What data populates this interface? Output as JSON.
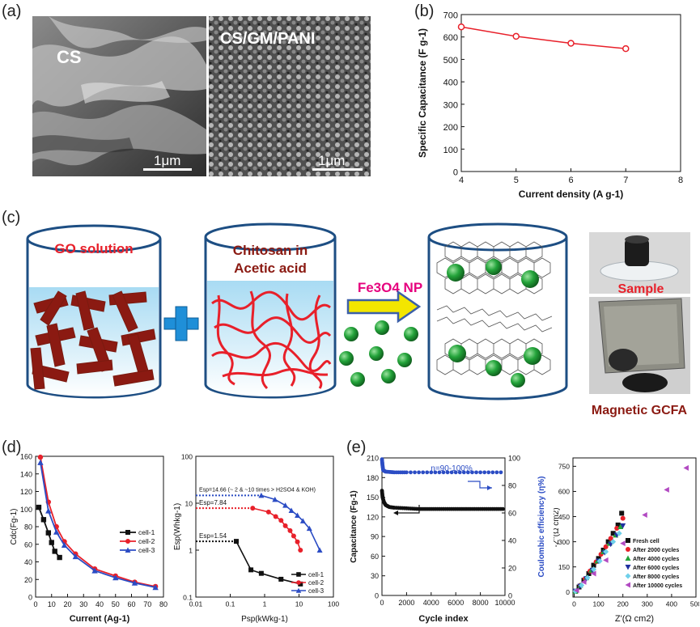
{
  "panels": {
    "a": "(a)",
    "b": "(b)",
    "c": "(c)",
    "d": "(d)",
    "e": "(e)"
  },
  "sem": {
    "left_label": "CS",
    "right_label": "CS/GM/PANI",
    "scale_left": "1μm",
    "scale_right": "1μm"
  },
  "diagram": {
    "beaker1": "GO solution",
    "beaker2_line1": "Chitosan in",
    "beaker2_line2": "Acetic acid",
    "np_label": "Fe3O4 NP",
    "photo_top": "Sample",
    "photo_bottom": "Magnetic GCFA"
  },
  "colors": {
    "red_text": "#e8202a",
    "brown": "#8b1a12",
    "plus": "#1f8fd8",
    "arrow": "#f3e600",
    "magenta": "#e6007e",
    "np_green": "#23a33a",
    "beaker_blue": "#cfe8f6"
  },
  "chart_data": [
    {
      "id": "b",
      "type": "line",
      "title": "",
      "xlabel": "Current density (A g-1)",
      "ylabel": "Specific Capacitance (F g-1)",
      "xlim": [
        4,
        8
      ],
      "ylim": [
        0,
        700
      ],
      "xticks": [
        "4",
        "5",
        "6",
        "7",
        "8"
      ],
      "yticks": [
        "0",
        "100",
        "200",
        "300",
        "400",
        "500",
        "600",
        "700"
      ],
      "series": [
        {
          "name": "capacitance",
          "color": "#e8202a",
          "x": [
            4,
            5,
            6,
            7
          ],
          "y": [
            645,
            603,
            572,
            548
          ]
        }
      ]
    },
    {
      "id": "d1",
      "type": "line",
      "xlabel": "Current (Ag-1)",
      "ylabel": "Cdc(Fg-1)",
      "xlim": [
        0,
        80
      ],
      "ylim": [
        0,
        160
      ],
      "xticks": [
        "0",
        "10",
        "20",
        "30",
        "40",
        "50",
        "60",
        "70",
        "80"
      ],
      "yticks": [
        "0",
        "20",
        "40",
        "60",
        "80",
        "100",
        "120",
        "140",
        "160"
      ],
      "legend": [
        "cell-1",
        "cell-2",
        "cell-3"
      ],
      "series": [
        {
          "name": "cell-1",
          "color": "#111111",
          "marker": "square",
          "x": [
            2,
            5,
            8,
            10,
            12,
            15
          ],
          "y": [
            102,
            88,
            73,
            62,
            52,
            45
          ]
        },
        {
          "name": "cell-2",
          "color": "#e8202a",
          "marker": "circle",
          "x": [
            3,
            8,
            13,
            18,
            25,
            37,
            50,
            62,
            75
          ],
          "y": [
            159,
            108,
            80,
            63,
            49,
            32,
            24,
            17,
            12
          ]
        },
        {
          "name": "cell-3",
          "color": "#2b4cc4",
          "marker": "triangle",
          "x": [
            3,
            8,
            13,
            18,
            25,
            37,
            50,
            62,
            75
          ],
          "y": [
            153,
            98,
            74,
            59,
            46,
            30,
            22,
            16,
            11
          ]
        }
      ]
    },
    {
      "id": "d2",
      "type": "line",
      "xlabel": "Psp(kWkg-1)",
      "ylabel": "Esp(Whkg-1)",
      "xscale": "log",
      "yscale": "log",
      "xlim": [
        0.01,
        100
      ],
      "ylim": [
        0.1,
        100
      ],
      "xticks": [
        "0.01",
        "0.1",
        "1",
        "10",
        "100"
      ],
      "yticks": [
        "0.1",
        "1",
        "10",
        "100"
      ],
      "legend": [
        "cell-1",
        "cell-2",
        "cell-3"
      ],
      "annotations": [
        "Esp=14.66 (~ 2 & ~10 times > H2SO4 & KOH)",
        "Esp=7.84",
        "Esp=1.54"
      ],
      "series": [
        {
          "name": "cell-1",
          "color": "#111111",
          "marker": "square",
          "x": [
            0.15,
            0.4,
            0.8,
            3,
            11
          ],
          "y": [
            1.54,
            0.38,
            0.32,
            0.24,
            0.19
          ]
        },
        {
          "name": "cell-2",
          "color": "#e8202a",
          "marker": "circle",
          "x": [
            0.45,
            1.3,
            2.1,
            3,
            4,
            5.5,
            7,
            9,
            11
          ],
          "y": [
            7.84,
            6.5,
            5.2,
            4.3,
            3.3,
            2.6,
            2.0,
            1.5,
            1.0
          ]
        },
        {
          "name": "cell-3",
          "color": "#2b4cc4",
          "marker": "triangle",
          "x": [
            0.8,
            2,
            4,
            6,
            9,
            13,
            20,
            40
          ],
          "y": [
            14.66,
            12,
            9,
            7,
            5.5,
            4.2,
            2.9,
            1.0
          ]
        }
      ]
    },
    {
      "id": "e1",
      "type": "line",
      "xlabel": "Cycle index",
      "ylabel": "Capacitance (Fg-1)",
      "ylabel_right": "Coulombic efficiency (η%)",
      "annotation": "η=90-100%",
      "xlim": [
        0,
        10000
      ],
      "ylim": [
        0,
        210
      ],
      "ylim_right": [
        0,
        100
      ],
      "xticks": [
        "0",
        "2000",
        "4000",
        "6000",
        "8000",
        "10000"
      ],
      "yticks": [
        "0",
        "30",
        "60",
        "90",
        "120",
        "150",
        "180",
        "210"
      ],
      "yticks_right": [
        "0",
        "20",
        "40",
        "60",
        "80",
        "100"
      ],
      "series": [
        {
          "name": "Capacitance",
          "color": "#111111",
          "x": [
            0,
            50,
            150,
            300,
            600,
            1000,
            2000,
            3000,
            4000,
            5000,
            6000,
            7000,
            8000,
            9000,
            10000
          ],
          "y": [
            160,
            150,
            143,
            138,
            135,
            134,
            133,
            132,
            132,
            132,
            132,
            132,
            132,
            132,
            132
          ]
        },
        {
          "name": "Coulombic efficiency",
          "color": "#2b4cc4",
          "x": [
            0,
            40,
            100,
            300,
            1000,
            2000,
            4000,
            6000,
            8000,
            10000
          ],
          "y": [
            99,
            95,
            91,
            90,
            89.5,
            89.5,
            89.5,
            89.5,
            89.5,
            89.5
          ]
        }
      ]
    },
    {
      "id": "e2",
      "type": "scatter",
      "xlabel": "Z'(Ω cm2)",
      "ylabel": "-Z''(Ω cm2)",
      "xlim": [
        -5,
        500
      ],
      "ylim": [
        -30,
        800
      ],
      "xticks": [
        "0",
        "100",
        "200",
        "300",
        "400",
        "500"
      ],
      "yticks": [
        "0",
        "150",
        "300",
        "450",
        "600",
        "750"
      ],
      "legend": [
        "Fresh cell",
        "After 2000 cycles",
        "After 4000 cycles",
        "After 6000 cycles",
        "After 8000 cycles",
        "After 10000 cycles"
      ],
      "series": [
        {
          "name": "Fresh cell",
          "color": "#111111",
          "marker": "square",
          "x": [
            5,
            20,
            40,
            60,
            80,
            100,
            120,
            140,
            160,
            180,
            195
          ],
          "y": [
            5,
            30,
            70,
            110,
            160,
            200,
            250,
            300,
            350,
            400,
            470
          ]
        },
        {
          "name": "After 2000 cycles",
          "color": "#e8202a",
          "marker": "circle",
          "x": [
            5,
            25,
            45,
            65,
            90,
            110,
            130,
            150,
            175,
            200
          ],
          "y": [
            5,
            40,
            80,
            125,
            180,
            225,
            270,
            320,
            380,
            440
          ]
        },
        {
          "name": "After 4000 cycles",
          "color": "#23a33a",
          "marker": "triangle",
          "x": [
            5,
            25,
            50,
            70,
            95,
            120,
            145,
            170,
            190
          ],
          "y": [
            5,
            40,
            85,
            130,
            185,
            240,
            290,
            340,
            390
          ]
        },
        {
          "name": "After 6000 cycles",
          "color": "#1f2fa0",
          "marker": "tri-down",
          "x": [
            5,
            25,
            50,
            75,
            100,
            125,
            150,
            175,
            200
          ],
          "y": [
            5,
            35,
            80,
            130,
            185,
            235,
            285,
            340,
            395
          ]
        },
        {
          "name": "After 8000 cycles",
          "color": "#6fd0ea",
          "marker": "diamond",
          "x": [
            5,
            30,
            55,
            80,
            105,
            130,
            160,
            185
          ],
          "y": [
            5,
            40,
            85,
            135,
            185,
            240,
            300,
            350
          ]
        },
        {
          "name": "After 10000 cycles",
          "color": "#b24ac2",
          "marker": "tri-left",
          "x": [
            10,
            40,
            80,
            130,
            200,
            290,
            380,
            460
          ],
          "y": [
            10,
            60,
            110,
            190,
            290,
            460,
            610,
            740
          ]
        }
      ]
    }
  ]
}
